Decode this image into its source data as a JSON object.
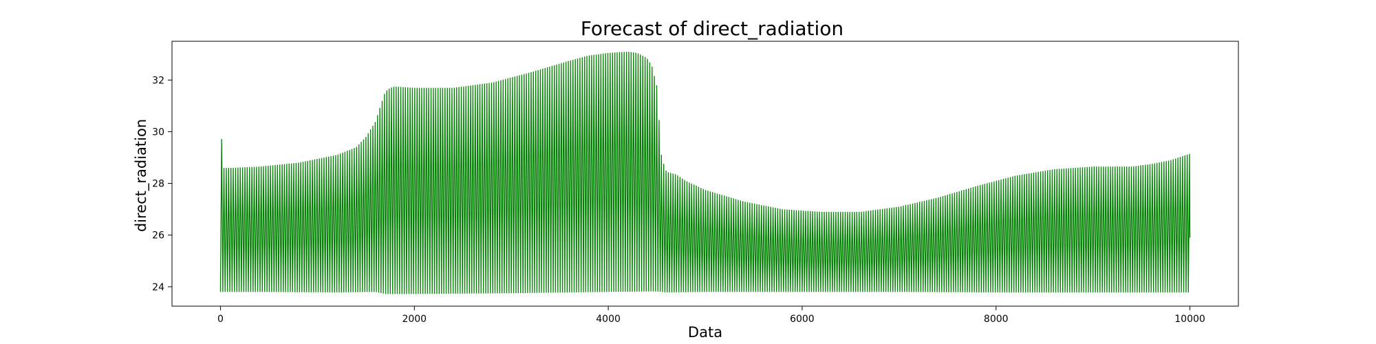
{
  "chart_data": {
    "type": "line",
    "title": "Forecast of direct_radiation",
    "xlabel": "Data",
    "ylabel": "direct_radiation",
    "xlim": [
      -500,
      10500
    ],
    "ylim": [
      23.25,
      33.5
    ],
    "x_ticks": [
      0,
      2000,
      4000,
      6000,
      8000,
      10000
    ],
    "y_ticks": [
      24,
      26,
      28,
      30,
      32
    ],
    "grid": false,
    "legend": "none",
    "series": [
      {
        "color": "#008000",
        "cycle_period": 24,
        "x_range": [
          0,
          10000
        ],
        "upper_envelope": {
          "x": [
            0,
            10,
            20,
            60,
            100,
            400,
            800,
            1200,
            1400,
            1500,
            1600,
            1650,
            1700,
            1750,
            1800,
            2000,
            2400,
            2800,
            3200,
            3600,
            3800,
            4000,
            4200,
            4300,
            4400,
            4450,
            4500,
            4550,
            4600,
            4700,
            4800,
            5000,
            5400,
            5800,
            6200,
            6600,
            7000,
            7400,
            7800,
            8200,
            8600,
            9000,
            9400,
            9600,
            9800,
            10000
          ],
          "y": [
            29.8,
            30.0,
            28.6,
            28.6,
            28.6,
            28.65,
            28.8,
            29.1,
            29.4,
            29.8,
            30.4,
            31.0,
            31.55,
            31.7,
            31.75,
            31.7,
            31.7,
            31.9,
            32.3,
            32.75,
            32.95,
            33.05,
            33.1,
            33.05,
            32.85,
            32.55,
            31.8,
            29.0,
            28.45,
            28.35,
            28.1,
            27.75,
            27.3,
            27.0,
            26.9,
            26.9,
            27.1,
            27.45,
            27.9,
            28.3,
            28.55,
            28.65,
            28.65,
            28.75,
            28.9,
            29.15
          ]
        },
        "lower_envelope": {
          "x": [
            0,
            400,
            1200,
            1600,
            1700,
            2000,
            3000,
            4000,
            4500,
            4600,
            5000,
            6000,
            7000,
            8000,
            9000,
            10000
          ],
          "y": [
            23.8,
            23.8,
            23.78,
            23.8,
            23.72,
            23.72,
            23.75,
            23.8,
            23.82,
            23.78,
            23.8,
            23.8,
            23.8,
            23.78,
            23.78,
            23.78
          ]
        },
        "last_value": 25.9
      }
    ]
  }
}
